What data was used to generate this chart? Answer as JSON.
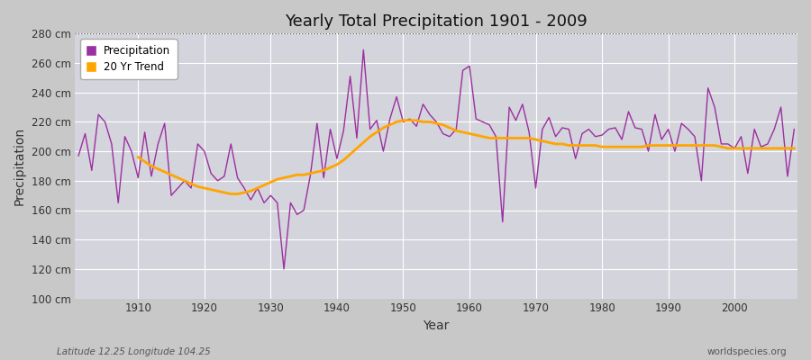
{
  "title": "Yearly Total Precipitation 1901 - 2009",
  "xlabel": "Year",
  "ylabel": "Precipitation",
  "footnote_left": "Latitude 12.25 Longitude 104.25",
  "footnote_right": "worldspecies.org",
  "precip_color": "#9B30A0",
  "trend_color": "#FFA500",
  "fig_bg_color": "#d8d8d8",
  "plot_bg_color": "#d0d0d8",
  "ylim": [
    100,
    280
  ],
  "ytick_step": 20,
  "years": [
    1901,
    1902,
    1903,
    1904,
    1905,
    1906,
    1907,
    1908,
    1909,
    1910,
    1911,
    1912,
    1913,
    1914,
    1915,
    1916,
    1917,
    1918,
    1919,
    1920,
    1921,
    1922,
    1923,
    1924,
    1925,
    1926,
    1927,
    1928,
    1929,
    1930,
    1931,
    1932,
    1933,
    1934,
    1935,
    1936,
    1937,
    1938,
    1939,
    1940,
    1941,
    1942,
    1943,
    1944,
    1945,
    1946,
    1947,
    1948,
    1949,
    1950,
    1951,
    1952,
    1953,
    1954,
    1955,
    1956,
    1957,
    1958,
    1959,
    1960,
    1961,
    1962,
    1963,
    1964,
    1965,
    1966,
    1967,
    1968,
    1969,
    1970,
    1971,
    1972,
    1973,
    1974,
    1975,
    1976,
    1977,
    1978,
    1979,
    1980,
    1981,
    1982,
    1983,
    1984,
    1985,
    1986,
    1987,
    1988,
    1989,
    1990,
    1991,
    1992,
    1993,
    1994,
    1995,
    1996,
    1997,
    1998,
    1999,
    2000,
    2001,
    2002,
    2003,
    2004,
    2005,
    2006,
    2007,
    2008,
    2009
  ],
  "precipitation": [
    197,
    212,
    187,
    225,
    220,
    205,
    165,
    210,
    200,
    182,
    213,
    183,
    205,
    219,
    170,
    175,
    180,
    175,
    205,
    200,
    185,
    180,
    183,
    205,
    182,
    175,
    167,
    175,
    165,
    170,
    165,
    120,
    165,
    157,
    160,
    184,
    219,
    182,
    215,
    195,
    214,
    251,
    209,
    269,
    215,
    221,
    200,
    222,
    237,
    220,
    222,
    217,
    232,
    225,
    220,
    212,
    210,
    215,
    255,
    258,
    222,
    220,
    218,
    210,
    152,
    230,
    221,
    232,
    213,
    175,
    215,
    223,
    210,
    216,
    215,
    195,
    212,
    215,
    210,
    211,
    215,
    216,
    208,
    227,
    216,
    215,
    200,
    225,
    208,
    215,
    200,
    219,
    215,
    210,
    180,
    243,
    230,
    205,
    205,
    202,
    210,
    185,
    215,
    203,
    205,
    215,
    230,
    183,
    215
  ],
  "trend_years": [
    1910,
    1911,
    1912,
    1913,
    1914,
    1915,
    1916,
    1917,
    1918,
    1919,
    1920,
    1921,
    1922,
    1923,
    1924,
    1925,
    1926,
    1927,
    1928,
    1929,
    1930,
    1931,
    1932,
    1933,
    1934,
    1935,
    1936,
    1937,
    1938,
    1939,
    1940,
    1941,
    1942,
    1943,
    1944,
    1945,
    1946,
    1947,
    1948,
    1949,
    1950,
    1951,
    1952,
    1953,
    1954,
    1955,
    1956,
    1957,
    1958,
    1959,
    1960,
    1961,
    1962,
    1963,
    1964,
    1965,
    1966,
    1967,
    1968,
    1969,
    1970,
    1971,
    1972,
    1973,
    1974,
    1975,
    1976,
    1977,
    1978,
    1979,
    1980,
    1981,
    1982,
    1983,
    1984,
    1985,
    1986,
    1987,
    1988,
    1989,
    1990,
    1991,
    1992,
    1993,
    1994,
    1995,
    1996,
    1997,
    1998,
    1999,
    2000,
    2001,
    2002,
    2003,
    2004,
    2005,
    2006,
    2007,
    2008,
    2009
  ],
  "trend": [
    196,
    193,
    190,
    188,
    186,
    184,
    182,
    180,
    178,
    176,
    175,
    174,
    173,
    172,
    171,
    171,
    172,
    173,
    175,
    177,
    179,
    181,
    182,
    183,
    184,
    184,
    185,
    186,
    187,
    189,
    191,
    194,
    198,
    202,
    206,
    210,
    213,
    216,
    218,
    220,
    221,
    221,
    221,
    220,
    220,
    219,
    218,
    216,
    214,
    213,
    212,
    211,
    210,
    209,
    209,
    209,
    209,
    209,
    209,
    209,
    208,
    207,
    206,
    205,
    205,
    204,
    204,
    204,
    204,
    204,
    203,
    203,
    203,
    203,
    203,
    203,
    203,
    204,
    204,
    204,
    204,
    204,
    204,
    204,
    204,
    204,
    204,
    204,
    203,
    202,
    202,
    202,
    202,
    202,
    202,
    202,
    202,
    202,
    202,
    202
  ],
  "legend_label_precip": "Precipitation",
  "legend_label_trend": "20 Yr Trend"
}
